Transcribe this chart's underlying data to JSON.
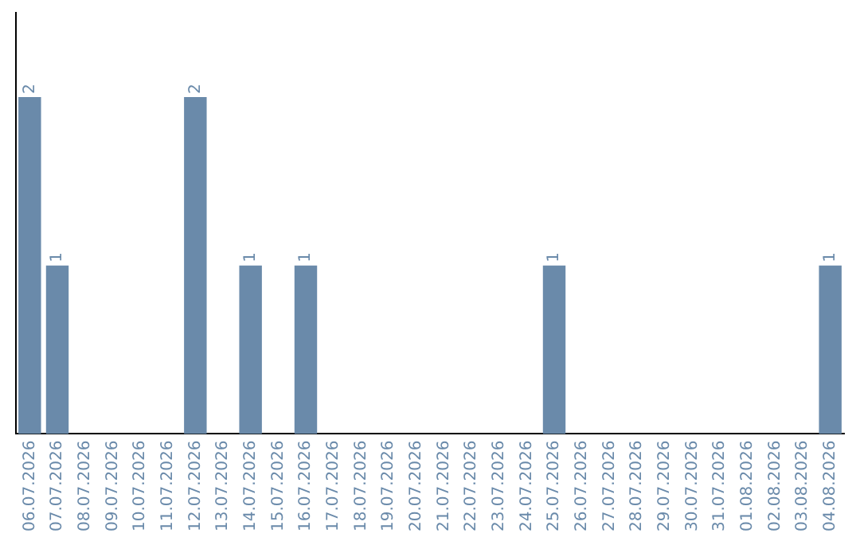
{
  "chart_data": {
    "type": "bar",
    "categories": [
      "06.07.2026",
      "07.07.2026",
      "08.07.2026",
      "09.07.2026",
      "10.07.2026",
      "11.07.2026",
      "12.07.2026",
      "13.07.2026",
      "14.07.2026",
      "15.07.2026",
      "16.07.2026",
      "17.07.2026",
      "18.07.2026",
      "19.07.2026",
      "20.07.2026",
      "21.07.2026",
      "22.07.2026",
      "23.07.2026",
      "24.07.2026",
      "25.07.2026",
      "26.07.2026",
      "27.07.2026",
      "28.07.2026",
      "29.07.2026",
      "30.07.2026",
      "31.07.2026",
      "01.08.2026",
      "02.08.2026",
      "03.08.2026",
      "04.08.2026"
    ],
    "values": [
      2,
      1,
      0,
      0,
      0,
      0,
      2,
      0,
      1,
      0,
      1,
      0,
      0,
      0,
      0,
      0,
      0,
      0,
      0,
      1,
      0,
      0,
      0,
      0,
      0,
      0,
      0,
      0,
      0,
      1
    ],
    "value_labels": [
      "2",
      "1",
      null,
      null,
      null,
      null,
      "2",
      null,
      "1",
      null,
      "1",
      null,
      null,
      null,
      null,
      null,
      null,
      null,
      null,
      "1",
      null,
      null,
      null,
      null,
      null,
      null,
      null,
      null,
      null,
      "1"
    ],
    "color": "#6a8aaa",
    "grid": false,
    "legend": false
  }
}
